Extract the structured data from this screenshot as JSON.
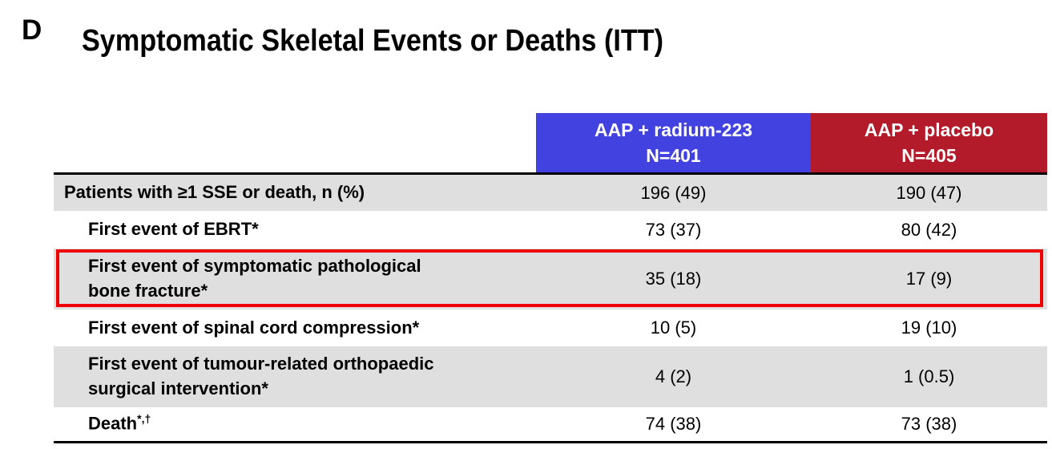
{
  "panel_letter": "D",
  "title": "Symptomatic Skeletal Events or Deaths (ITT)",
  "columns": [
    {
      "name": "AAP + radium-223",
      "n": "N=401",
      "color": "#4242e0"
    },
    {
      "name": "AAP + placebo",
      "n": "N=405",
      "color": "#b31b2a"
    }
  ],
  "rows": [
    {
      "label": "Patients with ≥1 SSE or death, n (%)",
      "values": [
        "196 (49)",
        "190 (47)"
      ]
    },
    {
      "label": "First event of EBRT*",
      "values": [
        "73 (37)",
        "80 (42)"
      ]
    },
    {
      "label_lines": [
        "First event of symptomatic pathological",
        "bone fracture*"
      ],
      "values": [
        "35 (18)",
        "17 (9)"
      ],
      "highlighted": true
    },
    {
      "label": "First event of spinal cord compression*",
      "values": [
        "10 (5)",
        "19 (10)"
      ]
    },
    {
      "label_lines": [
        "First event of tumour-related orthopaedic",
        "surgical intervention*"
      ],
      "values": [
        "4 (2)",
        "1 (0.5)"
      ]
    },
    {
      "label": "Death",
      "label_sup": "*,†",
      "values": [
        "74 (38)",
        "73 (38)"
      ]
    }
  ],
  "highlight_color": "#ee0000"
}
